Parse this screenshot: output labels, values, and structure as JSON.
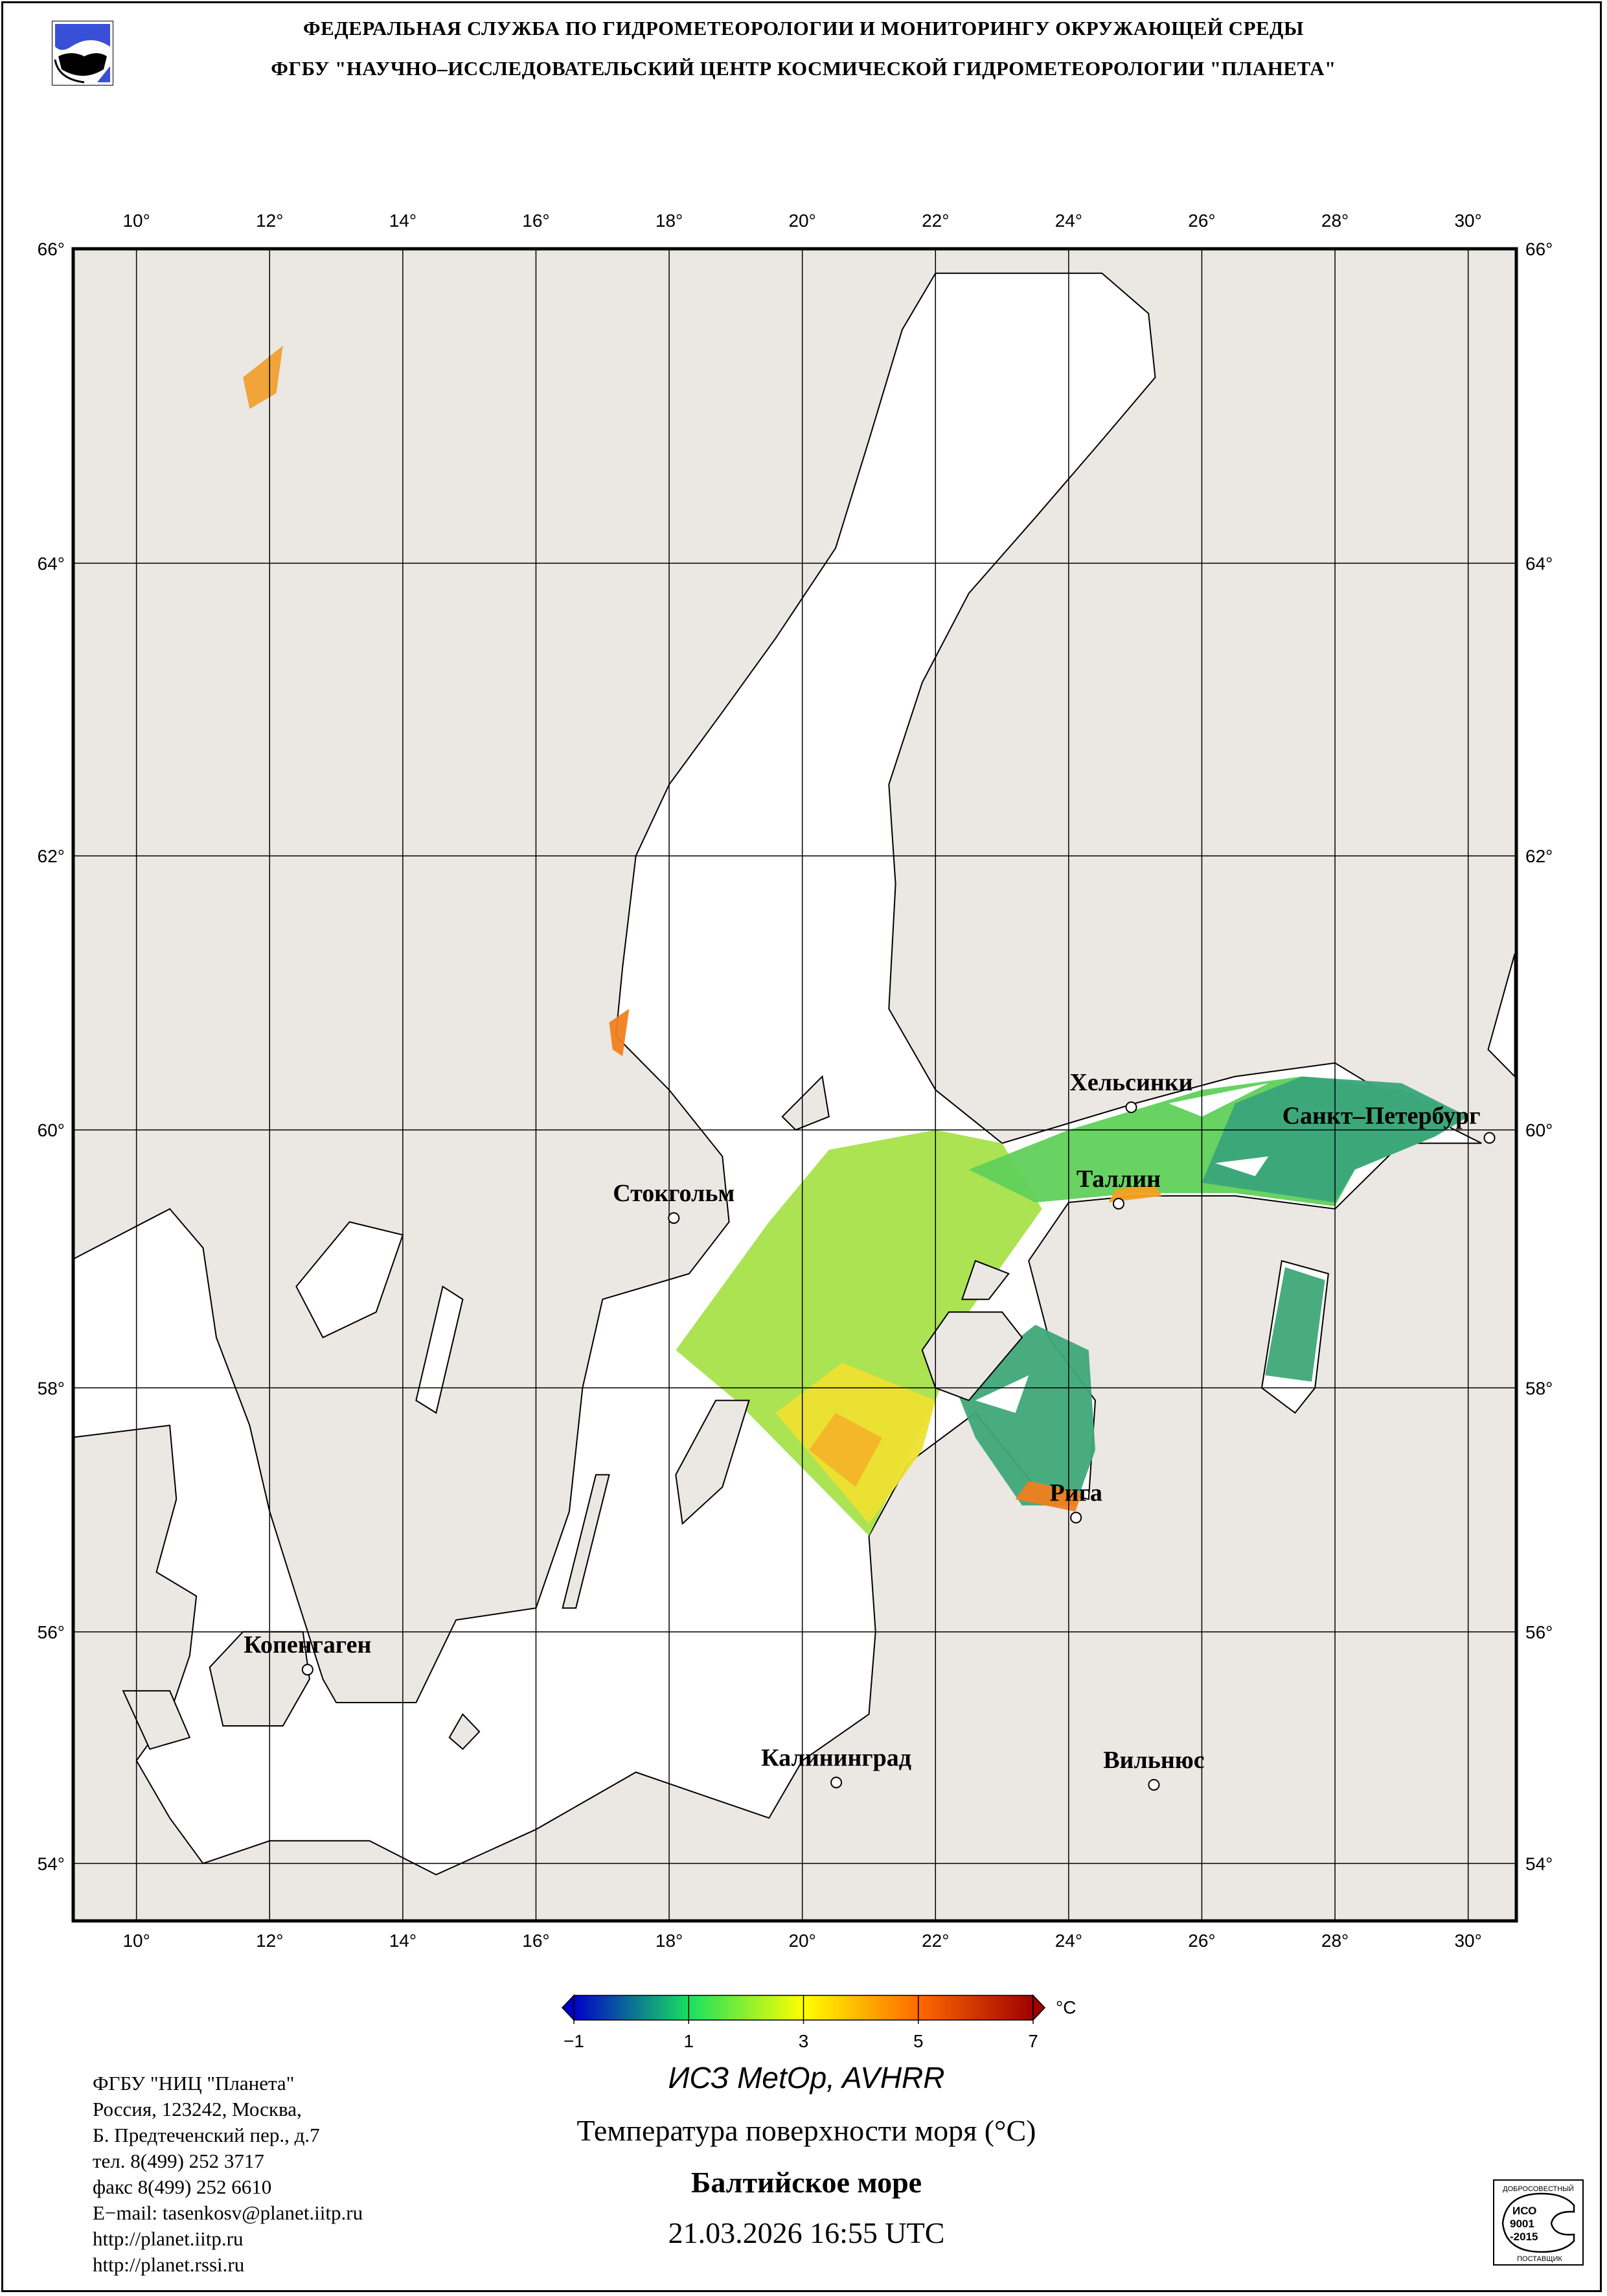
{
  "header": {
    "line1": "ФЕДЕРАЛЬНАЯ СЛУЖБА ПО ГИДРОМЕТЕОРОЛОГИИ И МОНИТОРИНГУ ОКРУЖАЮЩЕЙ СРЕДЫ",
    "line2": "ФГБУ \"НАУЧНО–ИССЛЕДОВАТЕЛЬСКИЙ ЦЕНТР КОСМИЧЕСКОЙ ГИДРОМЕТЕОРОЛОГИИ \"ПЛАНЕТА\"",
    "logo_icon": "planeta-logo"
  },
  "map": {
    "projection": "mercator",
    "lon_range": [
      9.05,
      30.7
    ],
    "lat_range": [
      53.5,
      66.0
    ],
    "land_color": "#ebe7e3",
    "water_color": "#ffffff",
    "lon_labels": [
      "10°",
      "12°",
      "14°",
      "16°",
      "18°",
      "20°",
      "22°",
      "24°",
      "26°",
      "28°",
      "30°"
    ],
    "lon_values": [
      10,
      12,
      14,
      16,
      18,
      20,
      22,
      24,
      26,
      28,
      30
    ],
    "lat_labels": [
      "66°",
      "64°",
      "62°",
      "60°",
      "58°",
      "56°",
      "54°"
    ],
    "lat_values": [
      66,
      64,
      62,
      60,
      58,
      56,
      54
    ],
    "cities": [
      {
        "name": "Хельсинки",
        "lon": 24.94,
        "lat": 60.17
      },
      {
        "name": "Санкт–Петербург",
        "lon": 30.32,
        "lat": 59.94
      },
      {
        "name": "Таллин",
        "lon": 24.75,
        "lat": 59.44
      },
      {
        "name": "Стокгольм",
        "lon": 18.07,
        "lat": 59.33
      },
      {
        "name": "Рига",
        "lon": 24.11,
        "lat": 56.95
      },
      {
        "name": "Копенгаген",
        "lon": 12.57,
        "lat": 55.68
      },
      {
        "name": "Калининград",
        "lon": 20.51,
        "lat": 54.71
      },
      {
        "name": "Вильнюс",
        "lon": 25.28,
        "lat": 54.69
      }
    ]
  },
  "colorbar": {
    "min": -1,
    "max": 7,
    "tick_labels": [
      "−1",
      "1",
      "3",
      "5",
      "7"
    ],
    "tick_values": [
      -1,
      1,
      3,
      5,
      7
    ],
    "unit": "°C",
    "colors": [
      "#0000c8",
      "#18e060",
      "#ffff00",
      "#ff6a00",
      "#a00000"
    ]
  },
  "titles": {
    "satellite": "ИСЗ MetOp, AVHRR",
    "parameter": "Температура поверхности моря (°C)",
    "region": "Балтийское море",
    "datetime": "21.03.2026 16:55 UTC"
  },
  "address": {
    "lines": [
      "ФГБУ \"НИЦ \"Планета\"",
      "Россия, 123242, Москва,",
      "Б. Предтеченский пер., д.7",
      "тел. 8(499) 252 3717",
      "факс 8(499) 252 6610",
      "E−mail: tasenkosv@planet.iitp.ru",
      "http://planet.iitp.ru",
      "http://planet.rssi.ru"
    ]
  },
  "iso_badge": {
    "top_text": "ДОБРОСОВЕСТНЫЙ",
    "center_text": "ИСО 9001 -2015",
    "bottom_text": "ПОСТАВЩИК"
  }
}
